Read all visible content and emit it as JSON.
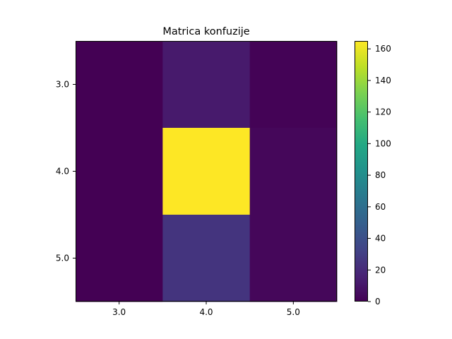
{
  "chart_data": {
    "type": "heatmap",
    "title": "Matrica konfuzije",
    "xlabel": "",
    "ylabel": "",
    "x_categories": [
      "3.0",
      "4.0",
      "5.0"
    ],
    "y_categories": [
      "3.0",
      "4.0",
      "5.0"
    ],
    "values": [
      [
        0,
        12,
        1
      ],
      [
        0,
        165,
        3
      ],
      [
        0,
        25,
        3
      ]
    ],
    "colormap": "viridis",
    "colorbar": {
      "range": [
        0,
        165
      ],
      "ticks": [
        0,
        20,
        40,
        60,
        80,
        100,
        120,
        140,
        160
      ],
      "tick_labels": [
        "0",
        "20",
        "40",
        "60",
        "80",
        "100",
        "120",
        "140",
        "160"
      ]
    },
    "grid": false,
    "legend": "none"
  }
}
